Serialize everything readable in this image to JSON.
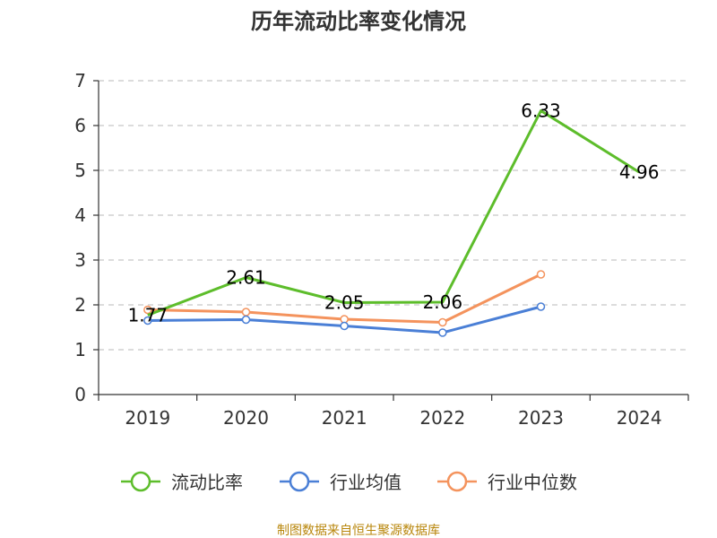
{
  "chart_data": {
    "type": "line",
    "title": "历年流动比率变化情况",
    "categories": [
      "2019",
      "2020",
      "2021",
      "2022",
      "2023",
      "2024"
    ],
    "y_ticks": [
      "0",
      "1",
      "2",
      "3",
      "4",
      "5",
      "6",
      "7"
    ],
    "ylim": [
      0,
      7
    ],
    "grid": true,
    "legend_position": "bottom",
    "series": [
      {
        "name": "流动比率",
        "color": "#5dbd2b",
        "values": [
          1.77,
          2.61,
          2.05,
          2.06,
          6.33,
          4.96
        ],
        "data_labels": [
          "1.77",
          "2.61",
          "2.05",
          "2.06",
          "6.33",
          "4.96"
        ]
      },
      {
        "name": "行业均值",
        "color": "#4a7fd6",
        "values": [
          1.65,
          1.67,
          1.53,
          1.38,
          1.96,
          null
        ]
      },
      {
        "name": "行业中位数",
        "color": "#f4935d",
        "values": [
          1.89,
          1.84,
          1.68,
          1.61,
          2.68,
          null
        ]
      }
    ]
  },
  "source": "制图数据来自恒生聚源数据库"
}
